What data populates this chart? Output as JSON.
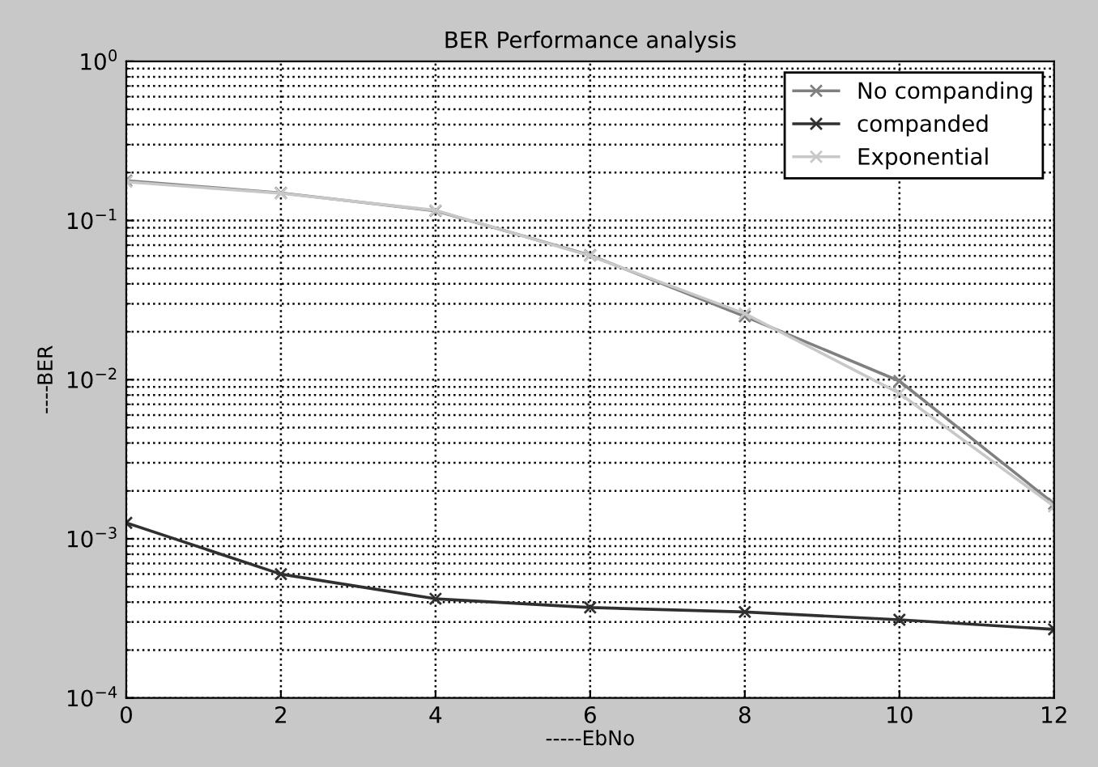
{
  "chart_data": {
    "type": "line",
    "title": "BER Performance analysis",
    "xlabel": "-----EbNo",
    "ylabel": "----BER",
    "log": "y",
    "x": [
      0,
      2,
      4,
      6,
      8,
      10,
      12
    ],
    "xlim": [
      0,
      12
    ],
    "xticks": [
      0,
      2,
      4,
      6,
      8,
      10,
      12
    ],
    "ylim": [
      0.0001,
      1
    ],
    "yticks": [
      {
        "value": 0.0001,
        "label": "10$^{−4}$"
      },
      {
        "value": 0.001,
        "label": "10$^{−3}$"
      },
      {
        "value": 0.01,
        "label": "10$^{−2}$"
      },
      {
        "value": 0.1,
        "label": "10$^{−1}$"
      },
      {
        "value": 1,
        "label": "10$^{0}$"
      }
    ],
    "grid": true,
    "legend": "top right",
    "marker": "cross",
    "line_style": "solid",
    "series": [
      {
        "name": "No companding",
        "color": "#808080",
        "values": [
          0.178,
          0.149,
          0.115,
          0.0605,
          0.025,
          0.0098,
          0.00166
        ]
      },
      {
        "name": "companded",
        "color": "#303030",
        "values": [
          0.00126,
          0.0006,
          0.00042,
          0.00037,
          0.000347,
          0.00031,
          0.00027
        ]
      },
      {
        "name": "Exponential",
        "color": "#c8c8c8",
        "values": [
          0.175,
          0.148,
          0.116,
          0.06,
          0.026,
          0.0082,
          0.0016
        ]
      }
    ]
  }
}
